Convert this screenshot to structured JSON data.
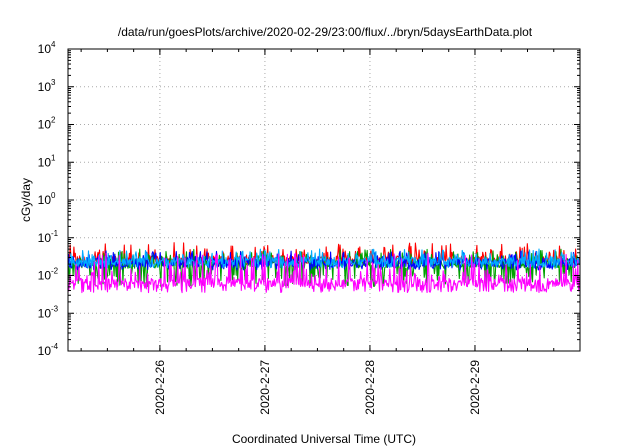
{
  "chart_data": {
    "type": "line",
    "title": "/data/run/goesPlots/archive/2020-02-29/23:00/flux/../bryn/5daysEarthData.plot",
    "xlabel": "Coordinated Universal Time (UTC)",
    "ylabel": "cGy/day",
    "x_range": [
      "2020-02-25T03:00",
      "2020-03-01T00:00"
    ],
    "x_ticks": [
      "2020-2-26",
      "2020-2-27",
      "2020-2-28",
      "2020-2-29"
    ],
    "y_scale": "log",
    "ylim": [
      0.0001,
      10000
    ],
    "y_ticks": [
      {
        "base": "10",
        "exp": "-4"
      },
      {
        "base": "10",
        "exp": "-3"
      },
      {
        "base": "10",
        "exp": "-2"
      },
      {
        "base": "10",
        "exp": "-1"
      },
      {
        "base": "10",
        "exp": "0"
      },
      {
        "base": "10",
        "exp": "1"
      },
      {
        "base": "10",
        "exp": "2"
      },
      {
        "base": "10",
        "exp": "3"
      },
      {
        "base": "10",
        "exp": "4"
      }
    ],
    "grid": true,
    "legend": "none",
    "series": [
      {
        "color": "#ff0000",
        "baseline": 0.026,
        "peak_max": 0.075,
        "dip_min": 0.02
      },
      {
        "color": "#00a000",
        "baseline": 0.02,
        "peak_max": 0.05,
        "dip_min": 0.005
      },
      {
        "color": "#0000ff",
        "baseline": 0.022,
        "peak_max": 0.045,
        "dip_min": 0.014
      },
      {
        "color": "#00aaff",
        "baseline": 0.024,
        "peak_max": 0.05,
        "dip_min": 0.016
      },
      {
        "color": "#ff00ff",
        "baseline": 0.0065,
        "peak_max": 0.04,
        "dip_min": 0.0035
      }
    ]
  }
}
